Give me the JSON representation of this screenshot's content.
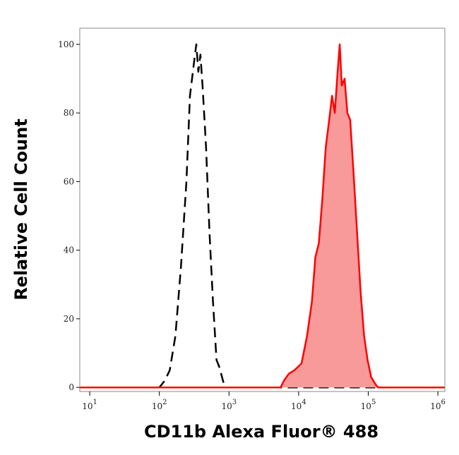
{
  "chart_data": {
    "type": "histogram-overlay",
    "x_label": "CD11b Alexa Fluor® 488",
    "y_label": "Relative Cell Count",
    "x_scale": "log",
    "xlim": [
      7.2,
      1260000
    ],
    "ylim": [
      -1.2,
      104.7
    ],
    "xticks": [
      {
        "value": 10,
        "label": "10",
        "exponent": "1"
      },
      {
        "value": 100,
        "label": "10",
        "exponent": "2"
      },
      {
        "value": 1000,
        "label": "10",
        "exponent": "3"
      },
      {
        "value": 10000,
        "label": "10",
        "exponent": "4"
      },
      {
        "value": 100000,
        "label": "10",
        "exponent": "5"
      },
      {
        "value": 1000000,
        "label": "10",
        "exponent": "6"
      }
    ],
    "yticks": [
      0,
      20,
      40,
      60,
      80,
      100
    ],
    "series": [
      {
        "color": "#000000",
        "style": "dashed",
        "fill": false,
        "x": [
          7.2,
          100,
          120,
          141,
          170,
          204,
          245,
          275,
          316,
          339,
          363,
          389,
          417,
          468,
          525,
          589,
          661,
          724,
          794,
          871,
          1260000
        ],
        "values": [
          0,
          0,
          2,
          5,
          15,
          35,
          60,
          85,
          95,
          100,
          92,
          97,
          88,
          70,
          45,
          25,
          8,
          6,
          3,
          0,
          0
        ]
      },
      {
        "color": "#ff0000",
        "style": "solid",
        "fill": true,
        "fill_color": "#f99a9a",
        "x": [
          7.2,
          5500,
          6170,
          7240,
          8710,
          11000,
          13200,
          15500,
          17400,
          19500,
          21900,
          24500,
          27500,
          30200,
          33100,
          36300,
          38900,
          41700,
          45700,
          50100,
          55000,
          61700,
          69200,
          77600,
          87100,
          97700,
          110000,
          126000,
          138000,
          1260000
        ],
        "values": [
          0,
          0,
          2,
          4,
          5,
          7,
          15,
          25,
          38,
          42,
          55,
          70,
          78,
          85,
          80,
          92,
          100,
          88,
          90,
          80,
          78,
          62,
          45,
          28,
          15,
          8,
          3,
          1,
          0,
          0
        ]
      }
    ]
  }
}
